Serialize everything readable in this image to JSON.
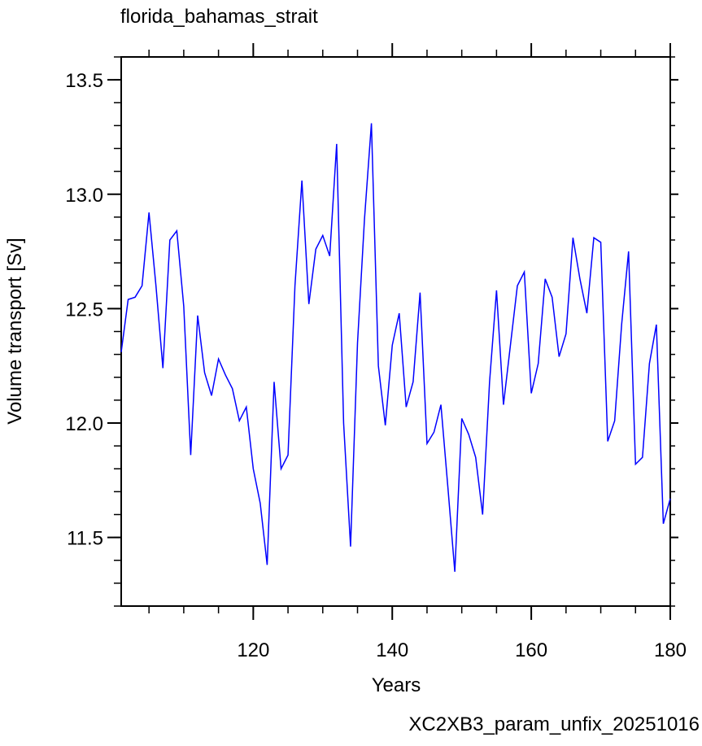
{
  "chart_data": {
    "type": "line",
    "title": "florida_bahamas_strait",
    "xlabel": "Years",
    "ylabel": "Volume transport [Sv]",
    "annotation": "XC2XB3_param_unfix_20251016",
    "annotation_color": "#0000ff",
    "x": [
      101,
      102,
      103,
      104,
      105,
      106,
      107,
      108,
      109,
      110,
      111,
      112,
      113,
      114,
      115,
      116,
      117,
      118,
      119,
      120,
      121,
      122,
      123,
      124,
      125,
      126,
      127,
      128,
      129,
      130,
      131,
      132,
      133,
      134,
      135,
      136,
      137,
      138,
      139,
      140,
      141,
      142,
      143,
      144,
      145,
      146,
      147,
      148,
      149,
      150,
      151,
      152,
      153,
      154,
      155,
      156,
      157,
      158,
      159,
      160,
      161,
      162,
      163,
      164,
      165,
      166,
      167,
      168,
      169,
      170,
      171,
      172,
      173,
      174,
      175,
      176,
      177,
      178,
      179,
      180
    ],
    "series": [
      {
        "name": "florida_bahamas_strait",
        "color": "#0000ff",
        "values": [
          12.31,
          12.54,
          12.55,
          12.6,
          12.92,
          12.6,
          12.24,
          12.8,
          12.84,
          12.51,
          11.86,
          12.47,
          12.22,
          12.12,
          12.28,
          12.21,
          12.15,
          12.01,
          12.07,
          11.8,
          11.65,
          11.38,
          12.18,
          11.8,
          11.86,
          12.6,
          13.06,
          12.52,
          12.76,
          12.82,
          12.73,
          13.22,
          12.0,
          11.46,
          12.35,
          12.89,
          13.31,
          12.25,
          11.99,
          12.34,
          12.48,
          12.07,
          12.18,
          12.57,
          11.91,
          11.96,
          12.08,
          11.72,
          11.35,
          12.02,
          11.95,
          11.85,
          11.6,
          12.18,
          12.58,
          12.08,
          12.34,
          12.6,
          12.66,
          12.13,
          12.26,
          12.63,
          12.55,
          12.29,
          12.39,
          12.81,
          12.63,
          12.48,
          12.81,
          12.79,
          11.92,
          12.01,
          12.43,
          12.75,
          11.82,
          11.85,
          12.26,
          12.43,
          11.56,
          11.67
        ]
      }
    ],
    "xlim": [
      101,
      180
    ],
    "xticks": [
      120,
      140,
      160,
      180
    ],
    "ylim": [
      11.2,
      13.6
    ],
    "yticks": [
      11.5,
      {
        "value": 12.0,
        "label": "12.0"
      },
      12.5,
      {
        "value": 13.0,
        "label": "13.0"
      },
      13.5
    ]
  }
}
